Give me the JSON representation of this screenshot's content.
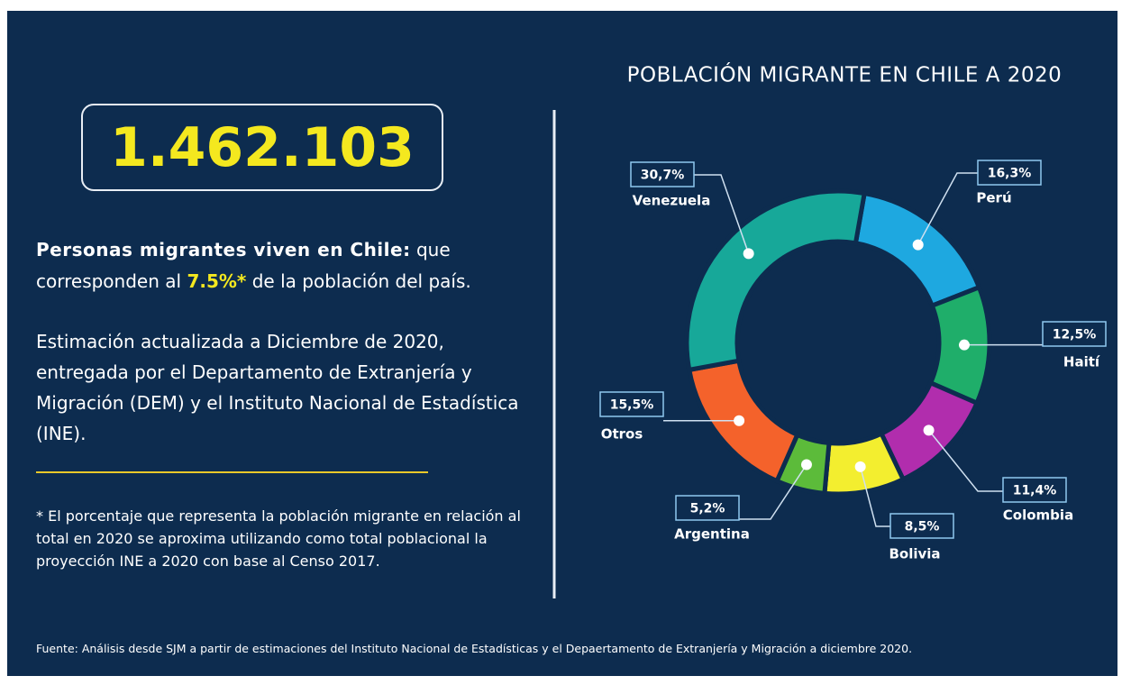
{
  "headline": {
    "number": "1.462.103"
  },
  "intro": {
    "lead": "Personas migrantes viven en Chile:",
    "text1": "que corresponden al",
    "highlight": "7.5%*",
    "text2": "de la población del país."
  },
  "estimate": "Estimación actualizada a Diciembre de 2020, entregada por el Departamento de Extranjería y Migración (DEM) y el Instituto Nacional de Estadística (INE).",
  "footnote": "* El porcentaje que representa la población migrante en relación al total en 2020 se aproxima utilizando como total poblacional la proyección INE a 2020 con base al Censo 2017.",
  "source": "Fuente: Análisis desde SJM a partir de estimaciones del Instituto Nacional de Estadísticas y el Depaertamento de Extranjería y Migración a diciembre 2020.",
  "chart_data": {
    "type": "donut",
    "title": "POBLACIÓN MIGRANTE EN CHILE A 2020",
    "categories": [
      "Perú",
      "Haití",
      "Colombia",
      "Bolivia",
      "Argentina",
      "Otros",
      "Venezuela"
    ],
    "values": [
      16.3,
      12.5,
      11.4,
      8.5,
      5.2,
      15.5,
      30.7
    ],
    "value_labels": [
      "16,3%",
      "12,5%",
      "11,4%",
      "8,5%",
      "5,2%",
      "15,5%",
      "30,7%"
    ],
    "colors": [
      "#1ea8e0",
      "#1fae6a",
      "#b12dad",
      "#f3ee2f",
      "#5cbb3a",
      "#f4622b",
      "#17a899"
    ]
  }
}
